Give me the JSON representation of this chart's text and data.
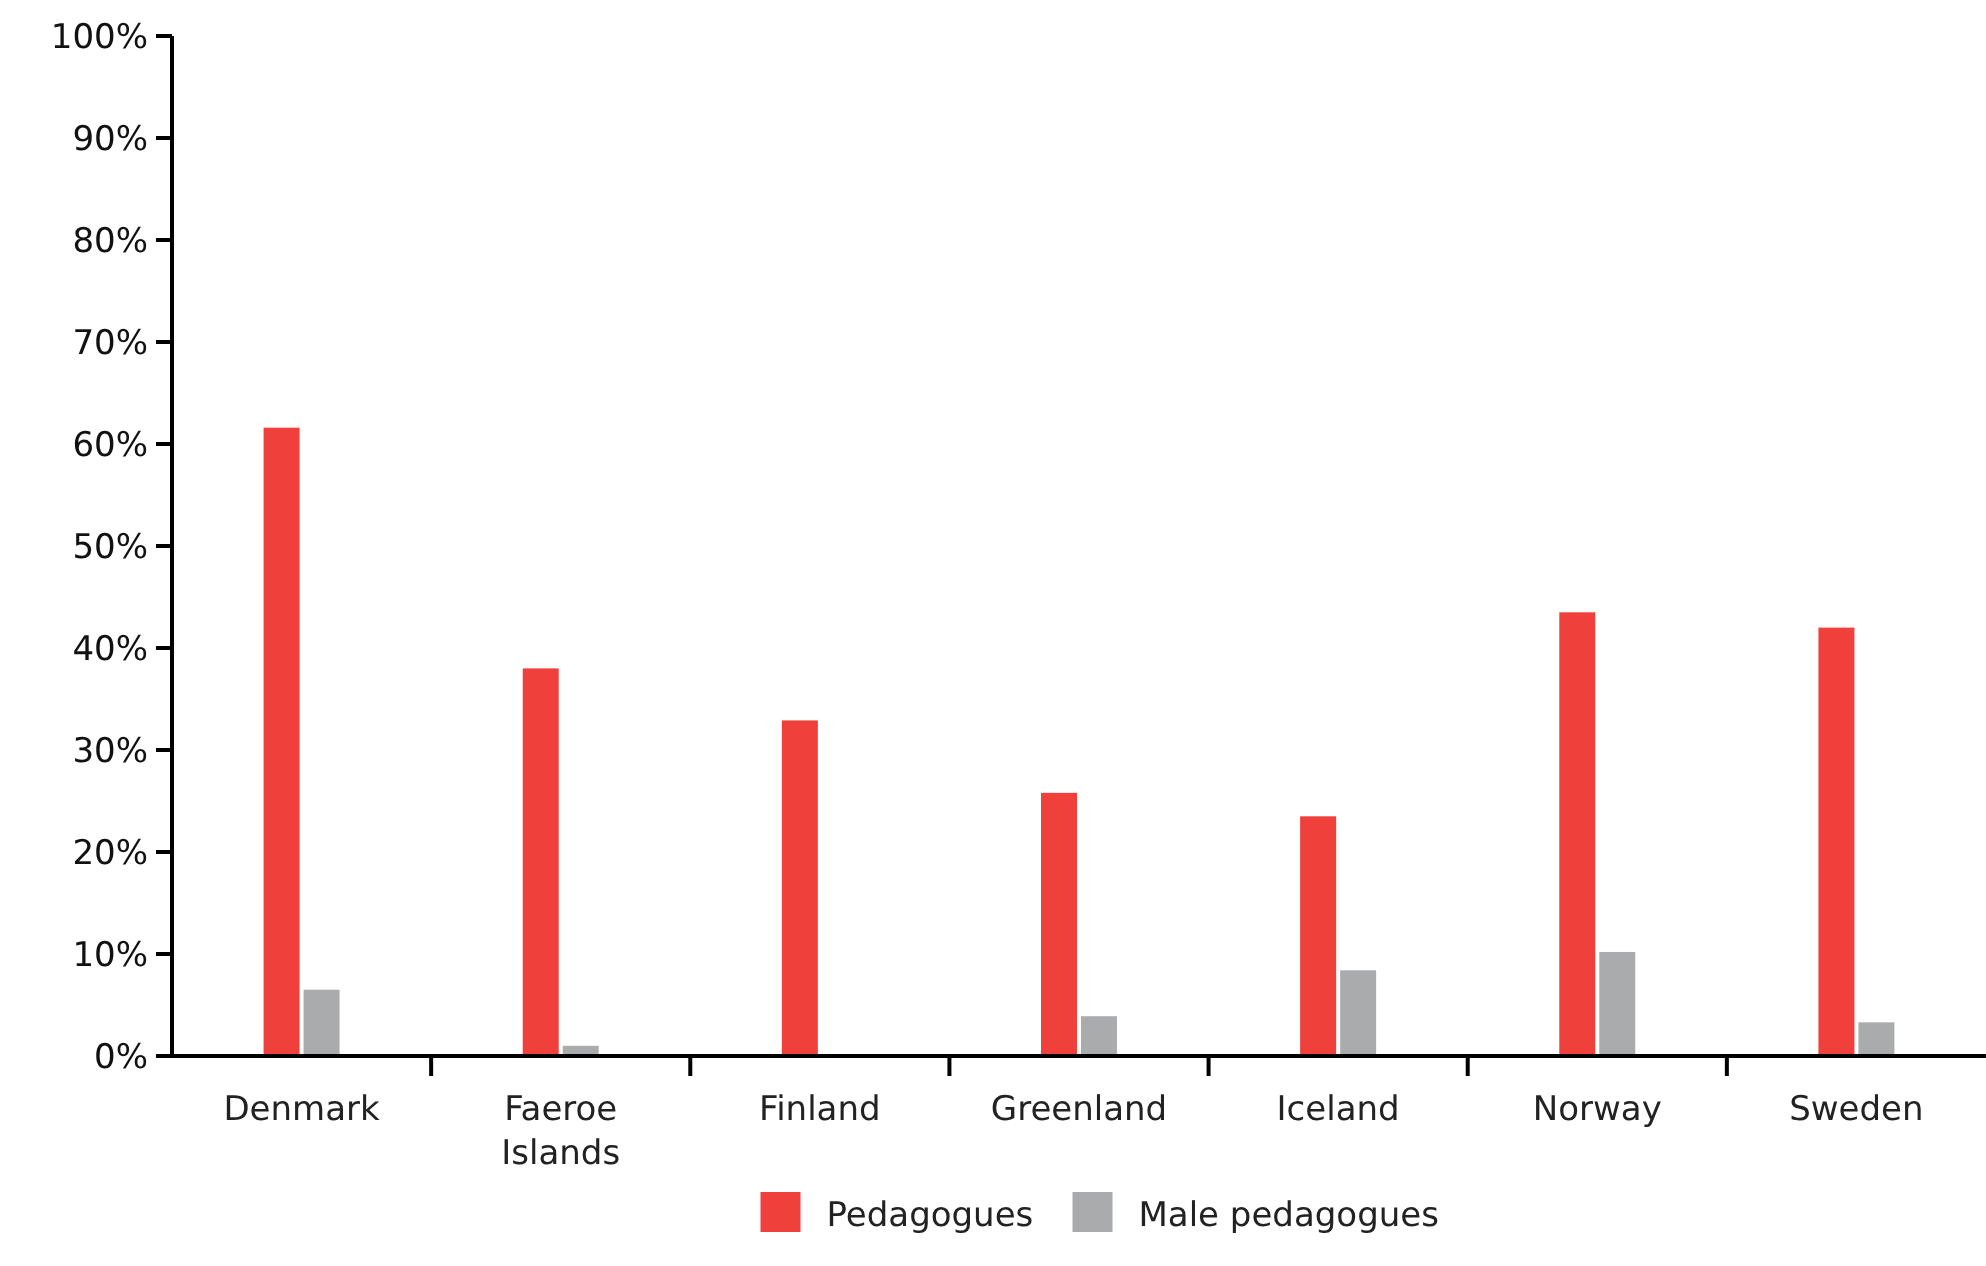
{
  "chart_data": {
    "type": "bar",
    "categories": [
      "Denmark",
      "Faeroe Islands",
      "Finland",
      "Greenland",
      "Iceland",
      "Norway",
      "Sweden"
    ],
    "series": [
      {
        "name": "Pedagogues",
        "color": "#ef403c",
        "values": [
          61.6,
          38.0,
          32.9,
          25.8,
          23.5,
          43.5,
          42.0
        ]
      },
      {
        "name": "Male pedagogues",
        "color": "#aaabac",
        "values": [
          6.5,
          1.0,
          null,
          3.9,
          8.4,
          10.2,
          3.3
        ]
      }
    ],
    "ylim": [
      0,
      100
    ],
    "yticks": [
      {
        "value": 0,
        "label": "0%"
      },
      {
        "value": 10,
        "label": "10%"
      },
      {
        "value": 20,
        "label": "20%"
      },
      {
        "value": 30,
        "label": "30%"
      },
      {
        "value": 40,
        "label": "40%"
      },
      {
        "value": 50,
        "label": "50%"
      },
      {
        "value": 60,
        "label": "60%"
      },
      {
        "value": 70,
        "label": "70%"
      },
      {
        "value": 80,
        "label": "80%"
      },
      {
        "value": 90,
        "label": "90%"
      },
      {
        "value": 100,
        "label": "100%"
      }
    ],
    "grid": false,
    "legend": "bottom"
  }
}
